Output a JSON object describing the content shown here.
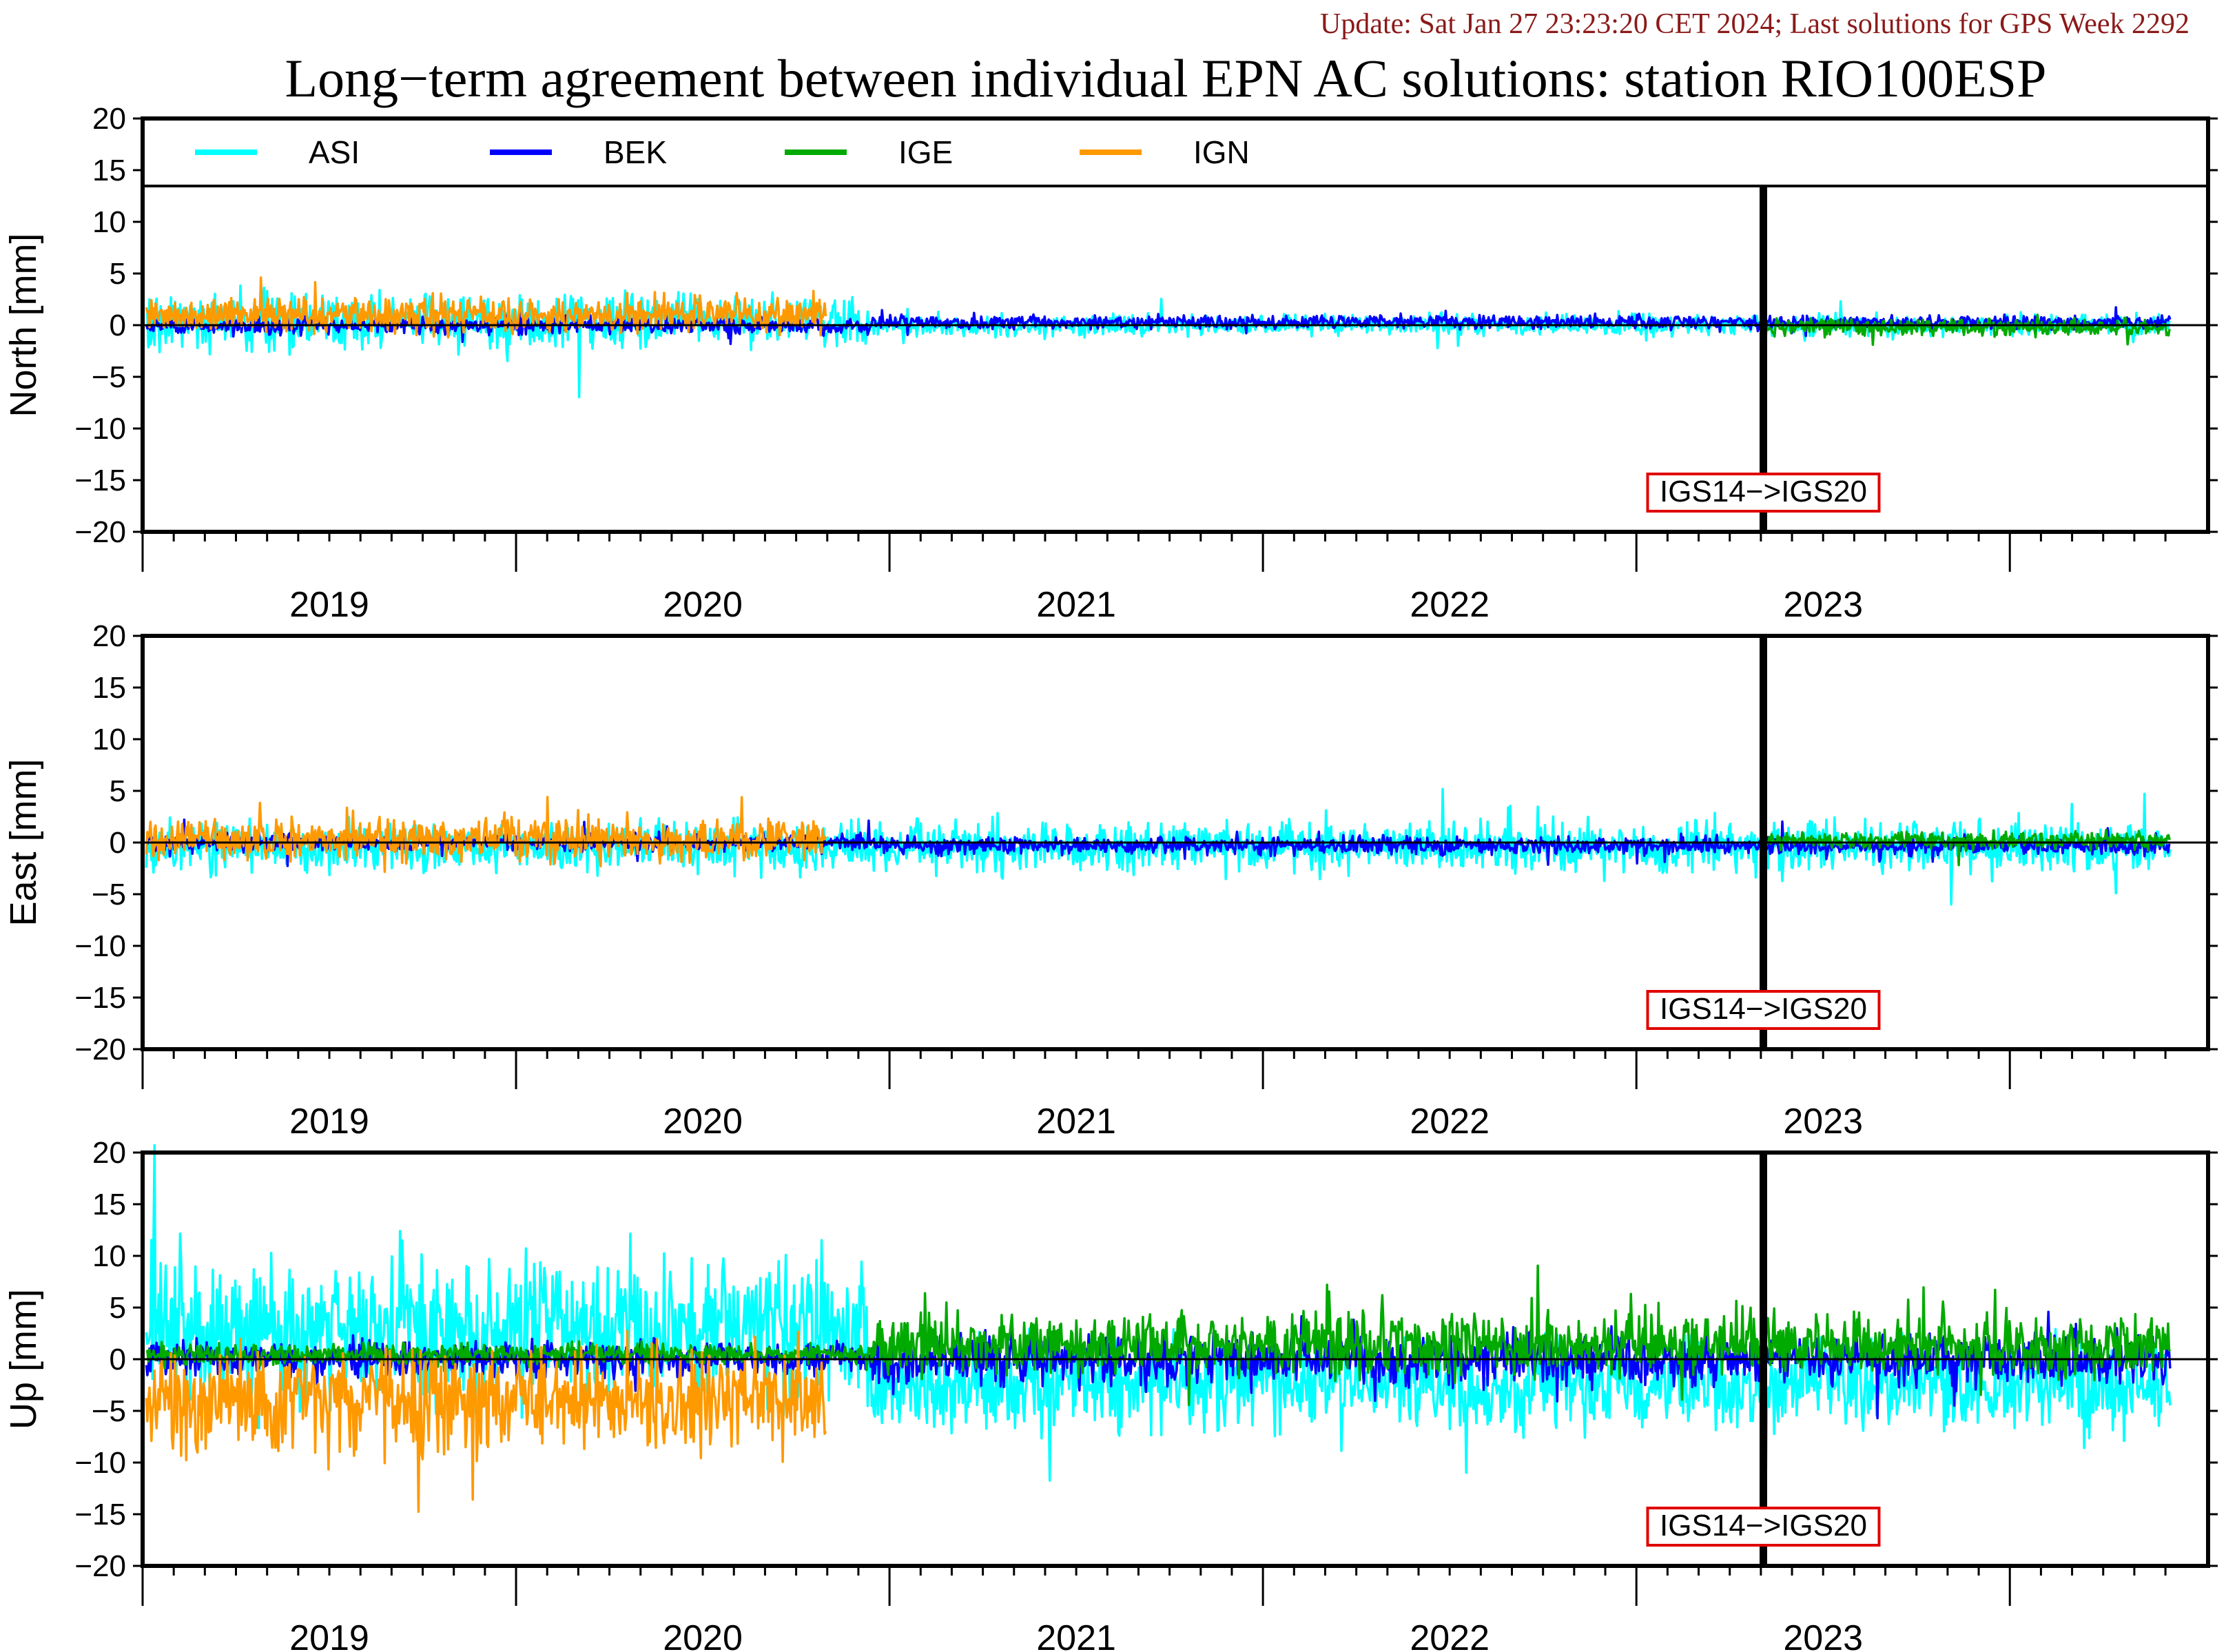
{
  "header": {
    "update": "Update: Sat Jan 27 23:23:20 CET 2024; Last solutions for GPS Week 2292",
    "title": "Long−term agreement between individual EPN AC solutions: station RIO100ESP"
  },
  "chart_data": [
    {
      "type": "line",
      "ylabel": "North [mm]",
      "ylim": [
        -20,
        20
      ],
      "yticks": [
        "20",
        "15",
        "10",
        "5",
        "0",
        "−5",
        "−10",
        "−15",
        "−20"
      ],
      "xlim": [
        2018.5,
        2023.97
      ],
      "xticklabels": [
        "2019",
        "2020",
        "2021",
        "2022",
        "2023"
      ],
      "legend": [
        "ASI",
        "BEK",
        "IGE",
        "IGN"
      ],
      "legend_position": "top",
      "annotation": "IGS14−>IGS20",
      "reference_change_year": 2022.84,
      "series": [
        {
          "name": "ASI",
          "color": "#00ffff",
          "x_start": 2018.51,
          "x_end": 2023.93,
          "mean": 0.4,
          "spread": 1.6,
          "late_mean": 0.0,
          "late_spread": 0.6
        },
        {
          "name": "BEK",
          "color": "#0000ff",
          "x_start": 2018.51,
          "x_end": 2023.93,
          "mean": 0.0,
          "spread": 0.5,
          "late_mean": 0.3,
          "late_spread": 0.4
        },
        {
          "name": "IGE",
          "color": "#00aa00",
          "x_start": 2022.84,
          "x_end": 2023.93,
          "mean": -0.2,
          "spread": 0.5,
          "late_mean": -0.2,
          "late_spread": 0.5
        },
        {
          "name": "IGN",
          "color": "#ff9900",
          "x_start": 2018.51,
          "x_end": 2020.33,
          "mean": 1.0,
          "spread": 1.0,
          "late_mean": 1.0,
          "late_spread": 1.0
        }
      ]
    },
    {
      "type": "line",
      "ylabel": "East [mm]",
      "ylim": [
        -20,
        20
      ],
      "yticks": [
        "20",
        "15",
        "10",
        "5",
        "0",
        "−5",
        "−10",
        "−15",
        "−20"
      ],
      "xlim": [
        2018.5,
        2023.97
      ],
      "xticklabels": [
        "2019",
        "2020",
        "2021",
        "2022",
        "2023"
      ],
      "annotation": "IGS14−>IGS20",
      "reference_change_year": 2022.84,
      "series": [
        {
          "name": "ASI",
          "color": "#00ffff",
          "x_start": 2018.51,
          "x_end": 2023.93,
          "mean": -0.5,
          "spread": 1.4,
          "late_mean": -0.4,
          "late_spread": 1.4
        },
        {
          "name": "BEK",
          "color": "#0000ff",
          "x_start": 2018.51,
          "x_end": 2023.93,
          "mean": 0.0,
          "spread": 0.5,
          "late_mean": -0.3,
          "late_spread": 0.5
        },
        {
          "name": "IGE",
          "color": "#00aa00",
          "x_start": 2022.84,
          "x_end": 2023.93,
          "mean": 0.2,
          "spread": 0.5,
          "late_mean": 0.2,
          "late_spread": 0.5
        },
        {
          "name": "IGN",
          "color": "#ff9900",
          "x_start": 2018.51,
          "x_end": 2020.33,
          "mean": 0.3,
          "spread": 1.2,
          "late_mean": 0.3,
          "late_spread": 1.2
        }
      ]
    },
    {
      "type": "line",
      "ylabel": "Up [mm]",
      "ylim": [
        -20,
        20
      ],
      "yticks": [
        "20",
        "15",
        "10",
        "5",
        "0",
        "−5",
        "−10",
        "−15",
        "−20"
      ],
      "xlim": [
        2018.5,
        2023.97
      ],
      "xticklabels": [
        "2019",
        "2020",
        "2021",
        "2022",
        "2023"
      ],
      "annotation": "IGS14−>IGS20",
      "reference_change_year": 2022.84,
      "series": [
        {
          "name": "ASI",
          "color": "#00ffff",
          "x_start": 2018.51,
          "x_end": 2023.93,
          "mean": 3.0,
          "spread": 4.0,
          "late_mean": -2.5,
          "late_spread": 2.5
        },
        {
          "name": "BEK",
          "color": "#0000ff",
          "x_start": 2018.51,
          "x_end": 2023.93,
          "mean": 0.0,
          "spread": 1.0,
          "late_mean": 0.0,
          "late_spread": 1.5
        },
        {
          "name": "IGE",
          "color": "#00aa00",
          "x_start": 2018.51,
          "x_end": 2023.93,
          "mean": 0.5,
          "spread": 0.6,
          "late_mean": 1.5,
          "late_spread": 1.8
        },
        {
          "name": "IGN",
          "color": "#ff9900",
          "x_start": 2018.51,
          "x_end": 2020.33,
          "mean": -4.0,
          "spread": 3.0,
          "late_mean": -4.0,
          "late_spread": 3.0
        }
      ]
    }
  ]
}
